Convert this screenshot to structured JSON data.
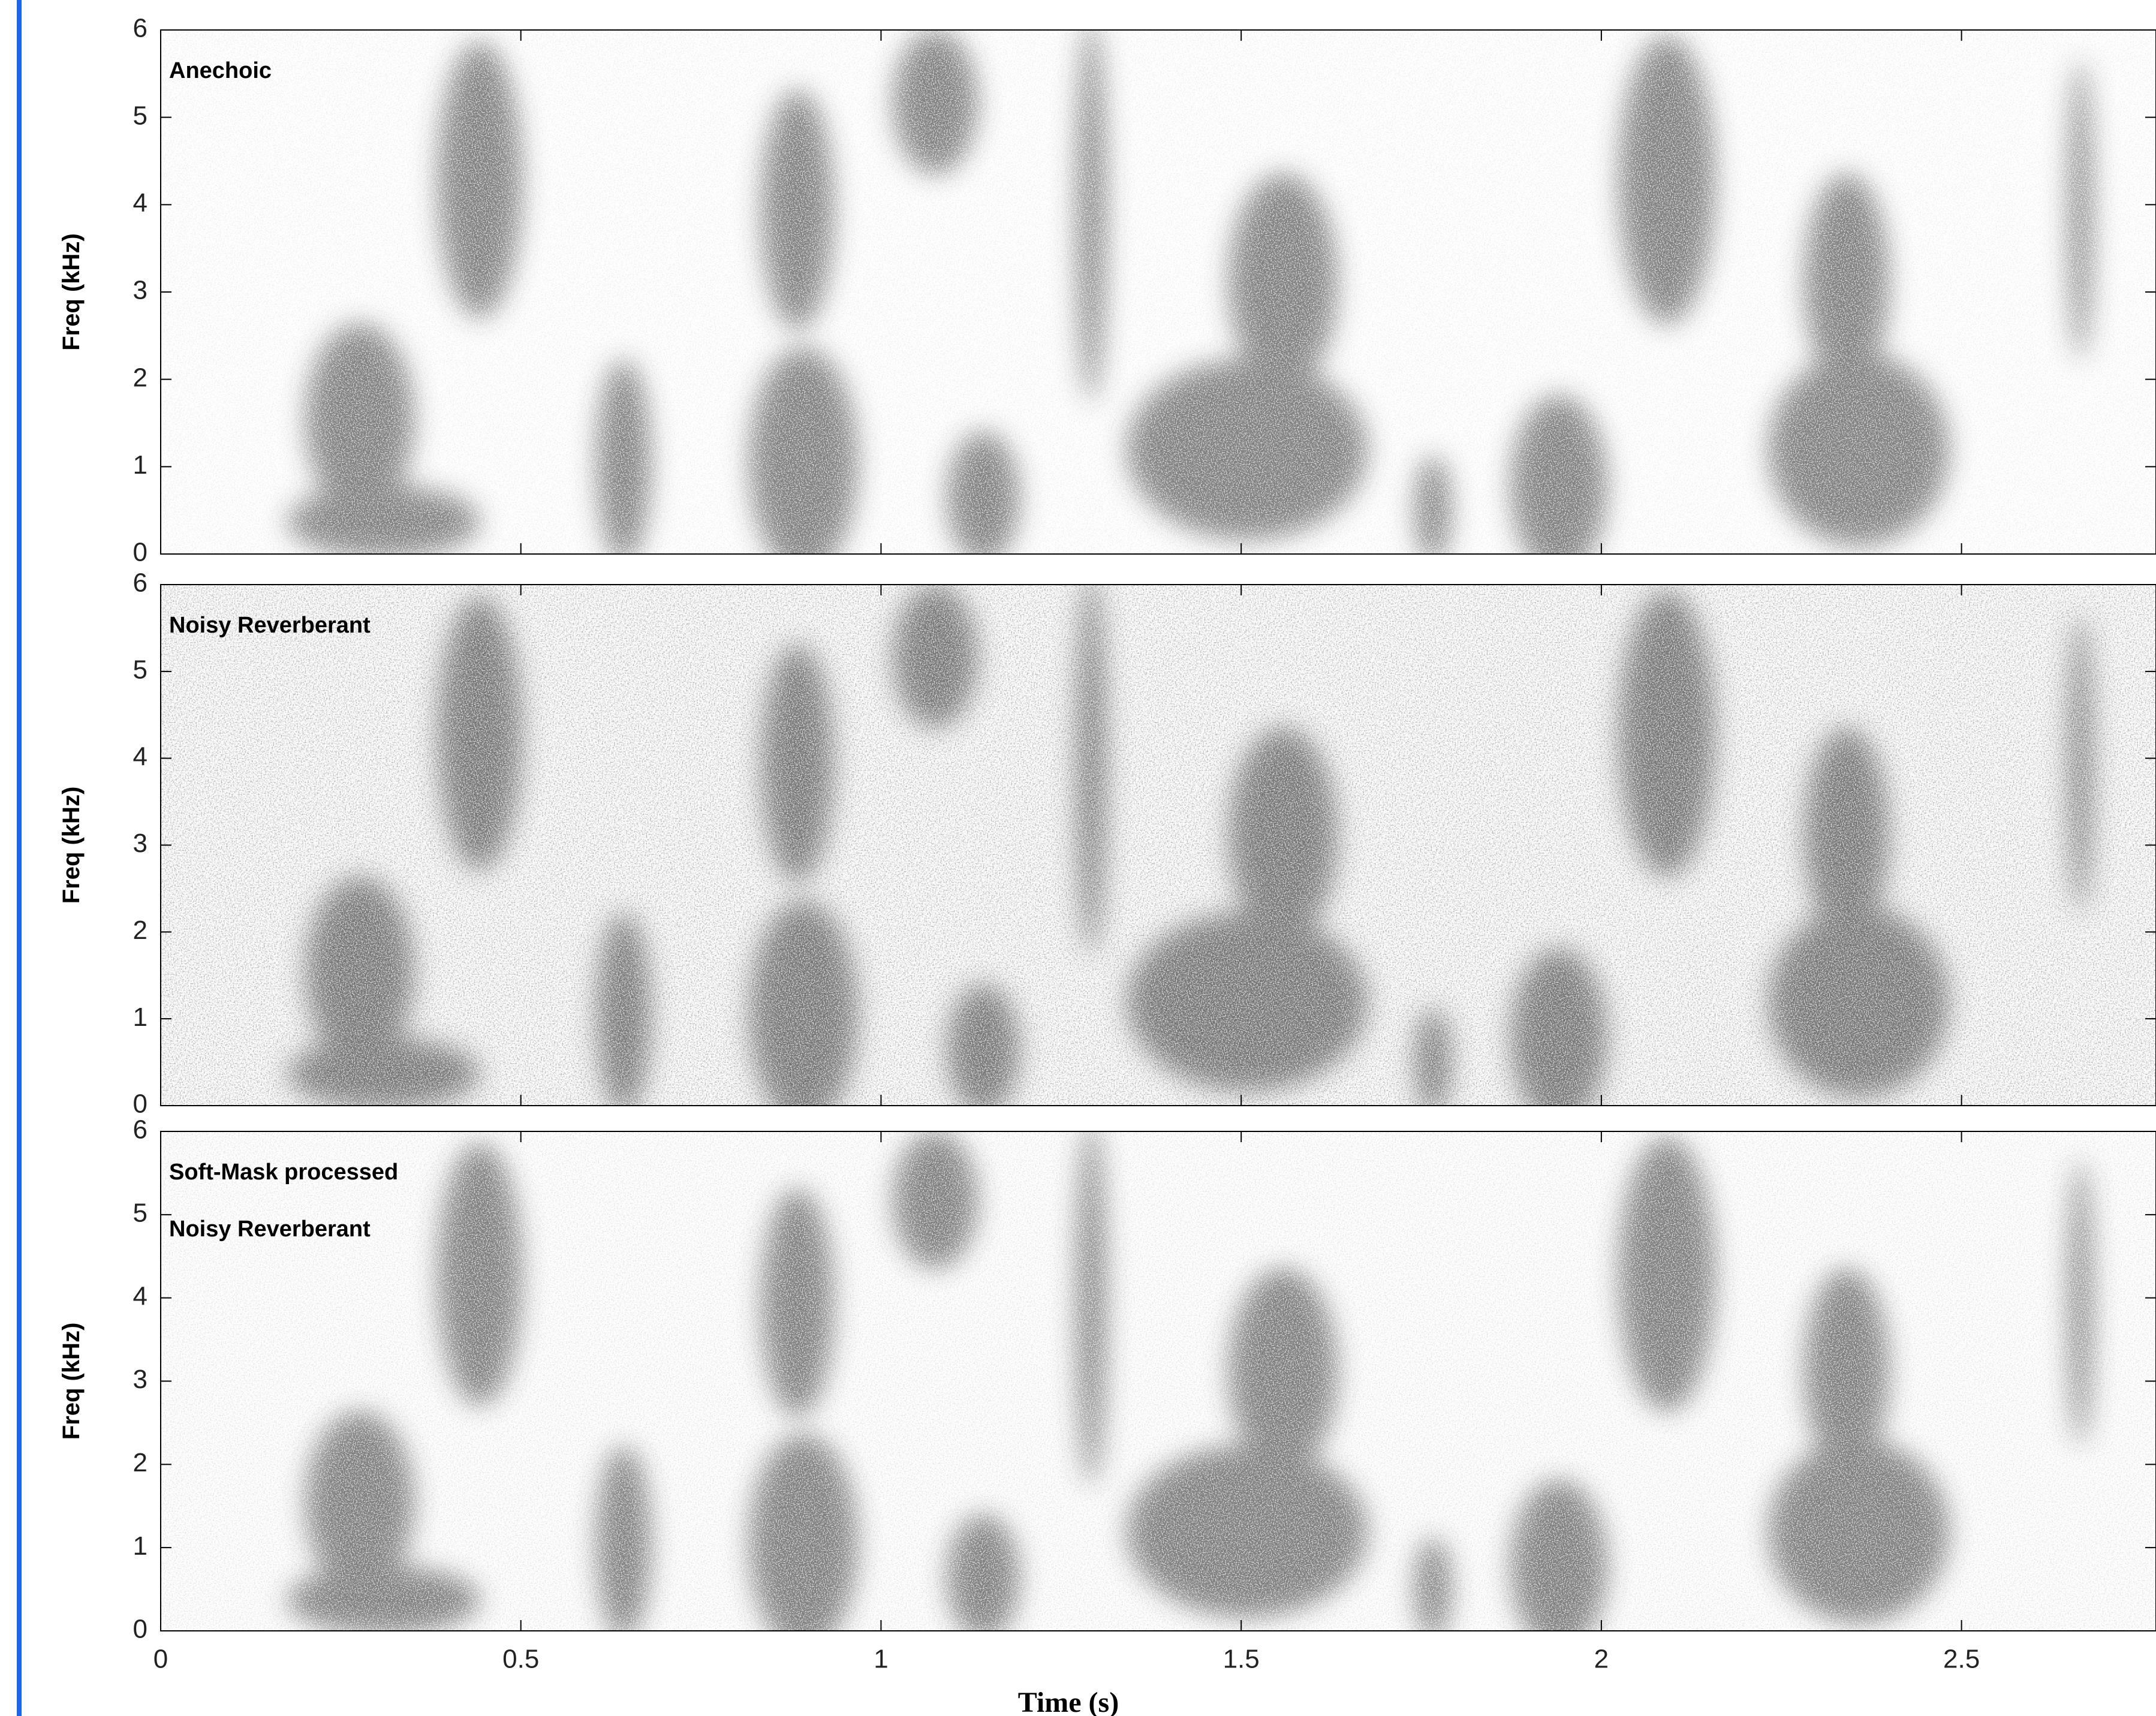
{
  "chart_data": [
    {
      "type": "spectrogram",
      "annotation": [
        "Anechoic"
      ],
      "ylabel": "Freq (kHz)",
      "xlim": [
        0,
        2.77
      ],
      "xticks": [
        0,
        0.5,
        1,
        1.5,
        2,
        2.5
      ],
      "show_xtick_labels": false,
      "ylim": [
        0,
        6
      ],
      "yticks": [
        0,
        1,
        2,
        3,
        4,
        5,
        6
      ],
      "noise_level": 0.15
    },
    {
      "type": "spectrogram",
      "annotation": [
        "Noisy Reverberant"
      ],
      "ylabel": "Freq (kHz)",
      "xlim": [
        0,
        2.77
      ],
      "xticks": [
        0,
        0.5,
        1,
        1.5,
        2,
        2.5
      ],
      "show_xtick_labels": false,
      "ylim": [
        0,
        6
      ],
      "yticks": [
        0,
        1,
        2,
        3,
        4,
        5,
        6
      ],
      "noise_level": 0.7
    },
    {
      "type": "spectrogram",
      "annotation": [
        "Soft-Mask processed",
        "Noisy Reverberant"
      ],
      "ylabel": "Freq (kHz)",
      "xlabel": "Time (s)",
      "xlim": [
        0,
        2.77
      ],
      "xticks": [
        0,
        0.5,
        1,
        1.5,
        2,
        2.5
      ],
      "show_xtick_labels": true,
      "ylim": [
        0,
        6
      ],
      "yticks": [
        0,
        1,
        2,
        3,
        4,
        5,
        6
      ],
      "noise_level": 0.25
    }
  ]
}
